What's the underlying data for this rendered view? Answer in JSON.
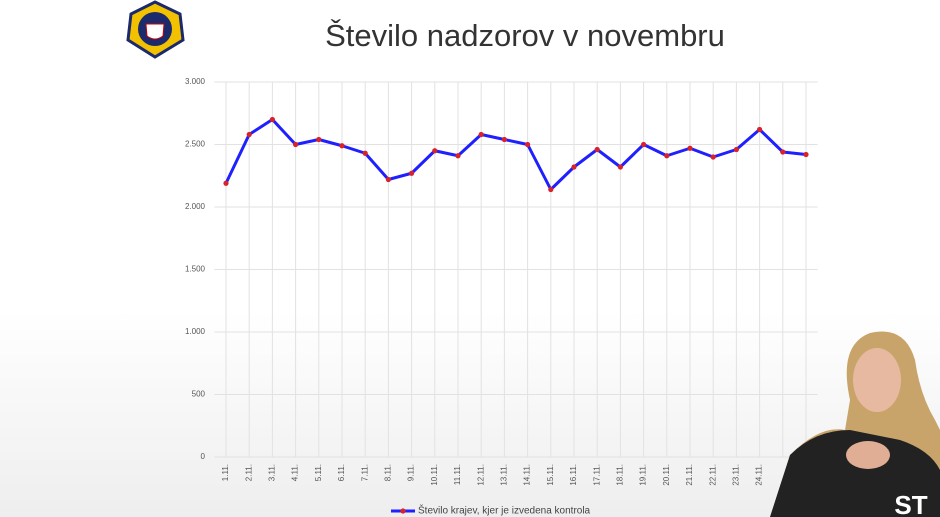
{
  "chart_data": {
    "type": "line",
    "title": "Število nadzorov v novembru",
    "categories": [
      "1.11.",
      "2.11.",
      "3.11.",
      "4.11.",
      "5.11.",
      "6.11.",
      "7.11.",
      "8.11.",
      "9.11.",
      "10.11.",
      "11.11.",
      "12.11.",
      "13.11.",
      "14.11.",
      "15.11.",
      "16.11.",
      "17.11.",
      "18.11.",
      "19.11.",
      "20.11.",
      "21.11.",
      "22.11.",
      "23.11.",
      "24.11.",
      null,
      null
    ],
    "series": [
      {
        "name": "Število krajev, kjer je izvedena kontrola",
        "color": "#1f1fff",
        "marker_color": "#d8232a",
        "values": [
          2190,
          2580,
          2700,
          2500,
          2540,
          2490,
          2430,
          2220,
          2270,
          2450,
          2410,
          2580,
          2540,
          2500,
          2140,
          2320,
          2460,
          2320,
          2500,
          2410,
          2470,
          2400,
          2460,
          2620,
          2440,
          2420
        ]
      }
    ],
    "ylim": [
      0,
      3000
    ],
    "yticks": [
      0,
      500,
      {
        "value": 1000,
        "label": "1.000"
      },
      {
        "value": 1500,
        "label": "1.500"
      },
      {
        "value": 2000,
        "label": "2.000"
      },
      {
        "value": 2500,
        "label": "2.500"
      },
      {
        "value": 3000,
        "label": "3.000"
      }
    ],
    "grid": true,
    "legend": "bottom"
  },
  "watermark": "ST"
}
